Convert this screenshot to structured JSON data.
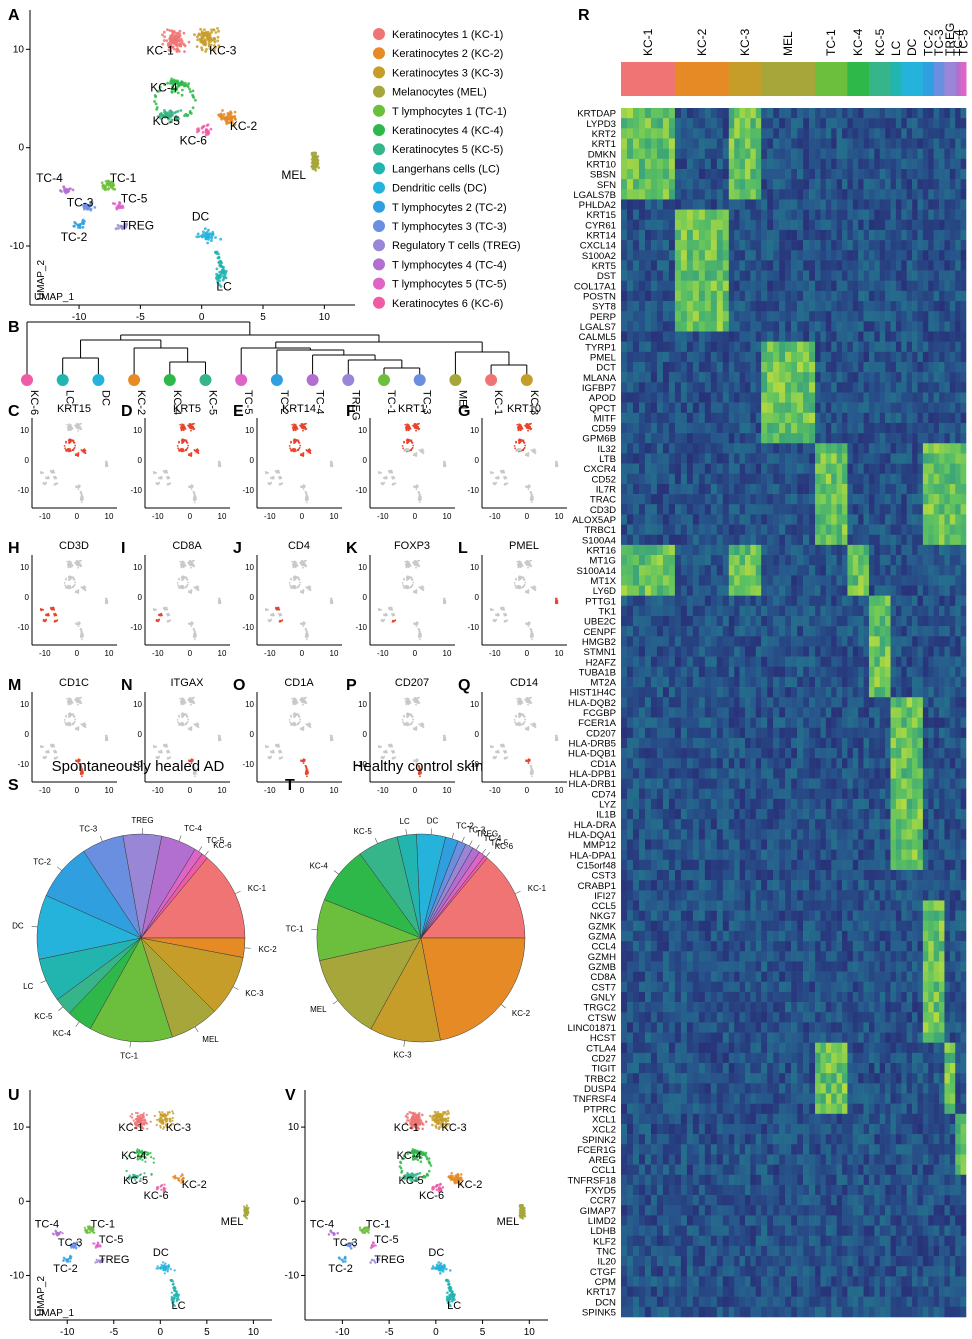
{
  "cell_types": [
    {
      "label": "Keratinocytes 1 (KC-1)",
      "code": "KC-1",
      "color": "#f07474"
    },
    {
      "label": "Keratinocytes 2 (KC-2)",
      "code": "KC-2",
      "color": "#e68a26"
    },
    {
      "label": "Keratinocytes 3 (KC-3)",
      "code": "KC-3",
      "color": "#c79d2a"
    },
    {
      "label": "Melanocytes (MEL)",
      "code": "MEL",
      "color": "#a6a63a"
    },
    {
      "label": "T lymphocytes 1 (TC-1)",
      "code": "TC-1",
      "color": "#6cbf3c"
    },
    {
      "label": "Keratinocytes 4 (KC-4)",
      "code": "KC-4",
      "color": "#2fb84a"
    },
    {
      "label": "Keratinocytes 5 (KC-5)",
      "code": "KC-5",
      "color": "#36b58a"
    },
    {
      "label": "Langerhans cells (LC)",
      "code": "LC",
      "color": "#22b5b0"
    },
    {
      "label": "Dendritic cells (DC)",
      "code": "DC",
      "color": "#25b3db"
    },
    {
      "label": "T lymphocytes 2 (TC-2)",
      "code": "TC-2",
      "color": "#2f9fe0"
    },
    {
      "label": "T lymphocytes 3 (TC-3)",
      "code": "TC-3",
      "color": "#6a8fe0"
    },
    {
      "label": "Regulatory T cells (TREG)",
      "code": "TREG",
      "color": "#9a86d6"
    },
    {
      "label": "T lymphocytes 4 (TC-4)",
      "code": "TC-4",
      "color": "#b36fd0"
    },
    {
      "label": "T lymphocytes 5 (TC-5)",
      "code": "TC-5",
      "color": "#de64c8"
    },
    {
      "label": "Keratinocytes 6 (KC-6)",
      "code": "KC-6",
      "color": "#ee5ca6"
    }
  ],
  "panel_letters": {
    "A": "A",
    "B": "B",
    "C": "C",
    "D": "D",
    "E": "E",
    "F": "F",
    "G": "G",
    "H": "H",
    "I": "I",
    "J": "J",
    "K": "K",
    "L": "L",
    "M": "M",
    "N": "N",
    "O": "O",
    "P": "P",
    "Q": "Q",
    "R": "R",
    "S": "S",
    "T": "T",
    "U": "U",
    "V": "V"
  },
  "umap_axis": {
    "xlabel": "UMAP_1",
    "ylabel": "UMAP_2",
    "x_ticks": [
      -10,
      -5,
      0,
      5,
      10
    ],
    "y_ticks": [
      10,
      0,
      -10
    ]
  },
  "dendrogram_leaves": [
    "KC-6",
    "LC",
    "DC",
    "KC-2",
    "KC-4",
    "KC-5",
    "TC-5",
    "TC-2",
    "TC-4",
    "TREG",
    "TC-1",
    "TC-3",
    "MEL",
    "KC-1",
    "KC-3"
  ],
  "feature_plots": [
    {
      "letter": "C",
      "gene": "KRT15"
    },
    {
      "letter": "D",
      "gene": "KRT5"
    },
    {
      "letter": "E",
      "gene": "KRT14"
    },
    {
      "letter": "F",
      "gene": "KRT1"
    },
    {
      "letter": "G",
      "gene": "KRT10"
    },
    {
      "letter": "H",
      "gene": "CD3D"
    },
    {
      "letter": "I",
      "gene": "CD8A"
    },
    {
      "letter": "J",
      "gene": "CD4"
    },
    {
      "letter": "K",
      "gene": "FOXP3"
    },
    {
      "letter": "L",
      "gene": "PMEL"
    },
    {
      "letter": "M",
      "gene": "CD1C"
    },
    {
      "letter": "N",
      "gene": "ITGAX"
    },
    {
      "letter": "O",
      "gene": "CD1A"
    },
    {
      "letter": "P",
      "gene": "CD207"
    },
    {
      "letter": "Q",
      "gene": "CD14"
    }
  ],
  "feature_axis": {
    "x_ticks": [
      -10,
      0,
      10
    ],
    "y_ticks": [
      10,
      0,
      -10
    ]
  },
  "pie_titles": {
    "S": "Spontaneously healed AD",
    "T": "Healthy control skin"
  },
  "chart_data": [
    {
      "type": "pie",
      "title": "Spontaneously healed AD",
      "categories": [
        "KC-1",
        "KC-6",
        "TC-5",
        "TC-4",
        "TREG",
        "TC-3",
        "TC-2",
        "DC",
        "LC",
        "KC-5",
        "KC-4",
        "TC-1",
        "MEL",
        "KC-3",
        "KC-2"
      ],
      "values": [
        14.0,
        1.0,
        1.3,
        5.5,
        6.0,
        6.5,
        9.0,
        10.0,
        6.8,
        2.8,
        4.0,
        13.0,
        7.6,
        9.5,
        3.0
      ]
    },
    {
      "type": "pie",
      "title": "Healthy control skin",
      "categories": [
        "KC-1",
        "KC-6",
        "TC-5",
        "TC-4",
        "TREG",
        "TC-3",
        "TC-2",
        "DC",
        "LC",
        "KC-5",
        "KC-4",
        "TC-1",
        "MEL",
        "KC-3",
        "KC-2"
      ],
      "values": [
        14.0,
        0.5,
        1.0,
        1.2,
        1.2,
        1.3,
        2.0,
        4.5,
        3.0,
        6.3,
        9.0,
        9.5,
        13.5,
        11.0,
        22.0
      ]
    },
    {
      "type": "heatmap",
      "columns": [
        "KC-1",
        "KC-2",
        "KC-3",
        "MEL",
        "TC-1",
        "KC-4",
        "KC-5",
        "LC",
        "DC",
        "TC-2",
        "TC-3",
        "TREG",
        "TC-4",
        "TC-5"
      ],
      "column_widths_relative": [
        10,
        10,
        6,
        10,
        6,
        4,
        4,
        2,
        4,
        2,
        2,
        2,
        1,
        1
      ],
      "rows": [
        "KRTDAP",
        "LYPD3",
        "KRT2",
        "KRT1",
        "DMKN",
        "KRT10",
        "SBSN",
        "SFN",
        "LGALS7B",
        "PHLDA2",
        "KRT15",
        "CYR61",
        "KRT14",
        "CXCL14",
        "S100A2",
        "KRT5",
        "DST",
        "COL17A1",
        "POSTN",
        "SYT8",
        "PERP",
        "LGALS7",
        "CALML5",
        "TYRP1",
        "PMEL",
        "DCT",
        "MLANA",
        "IGFBP7",
        "APOD",
        "QPCT",
        "MITF",
        "CD59",
        "GPM6B",
        "IL32",
        "LTB",
        "CXCR4",
        "CD52",
        "IL7R",
        "TRAC",
        "CD3D",
        "ALOX5AP",
        "TRBC1",
        "S100A4",
        "KRT16",
        "MT1G",
        "S100A14",
        "MT1X",
        "LY6D",
        "PTTG1",
        "TK1",
        "UBE2C",
        "CENPF",
        "HMGB2",
        "STMN1",
        "H2AFZ",
        "TUBA1B",
        "MT2A",
        "HIST1H4C",
        "HLA-DQB2",
        "FCGBP",
        "FCER1A",
        "CD207",
        "HLA-DRB5",
        "HLA-DQB1",
        "CD1A",
        "HLA-DPB1",
        "HLA-DRB1",
        "CD74",
        "LYZ",
        "IL1B",
        "HLA-DRA",
        "HLA-DQA1",
        "MMP12",
        "HLA-DPA1",
        "C15orf48",
        "CST3",
        "CRABP1",
        "IFI27",
        "CCL5",
        "NKG7",
        "GZMK",
        "GZMA",
        "CCL4",
        "GZMH",
        "GZMB",
        "CD8A",
        "CST7",
        "GNLY",
        "TRGC2",
        "CTSW",
        "LINC01871",
        "HCST",
        "CTLA4",
        "CD27",
        "TIGIT",
        "TRBC2",
        "DUSP4",
        "TNFRSF4",
        "PTPRC",
        "XCL1",
        "XCL2",
        "SPINK2",
        "FCER1G",
        "AREG",
        "CCL1",
        "TNFRSF18",
        "FXYD5",
        "CCR7",
        "GIMAP7",
        "LIMD2",
        "LDHB",
        "KLF2",
        "TNC",
        "IL20",
        "CTGF",
        "CPM",
        "KRT17",
        "DCN",
        "SPINK5"
      ],
      "high_blocks": [
        {
          "rows": "KRTDAP-LGALS7B",
          "columns": [
            "KC-1",
            "KC-3"
          ]
        },
        {
          "rows": "KRT15-LGALS7",
          "columns": [
            "KC-2"
          ]
        },
        {
          "rows": "TYRP1-GPM6B",
          "columns": [
            "MEL"
          ]
        },
        {
          "rows": "IL32-S100A4",
          "columns": [
            "TC-1",
            "TC-2",
            "TC-3",
            "TREG",
            "TC-4",
            "TC-5"
          ]
        },
        {
          "rows": "KRT16-LY6D",
          "columns": [
            "KC-4",
            "KC-1",
            "KC-3"
          ]
        },
        {
          "rows": "PTTG1-HIST1H4C",
          "columns": [
            "KC-5"
          ]
        },
        {
          "rows": "HLA-DQB2-C15orf48",
          "columns": [
            "LC",
            "DC"
          ]
        },
        {
          "rows": "CCL5-HCST",
          "columns": [
            "TC-2",
            "TC-3"
          ]
        },
        {
          "rows": "CTLA4-PTPRC",
          "columns": [
            "TREG",
            "TC-1"
          ]
        },
        {
          "rows": "XCL1-CCL1",
          "columns": [
            "TC-4",
            "TC-5"
          ]
        }
      ]
    }
  ]
}
